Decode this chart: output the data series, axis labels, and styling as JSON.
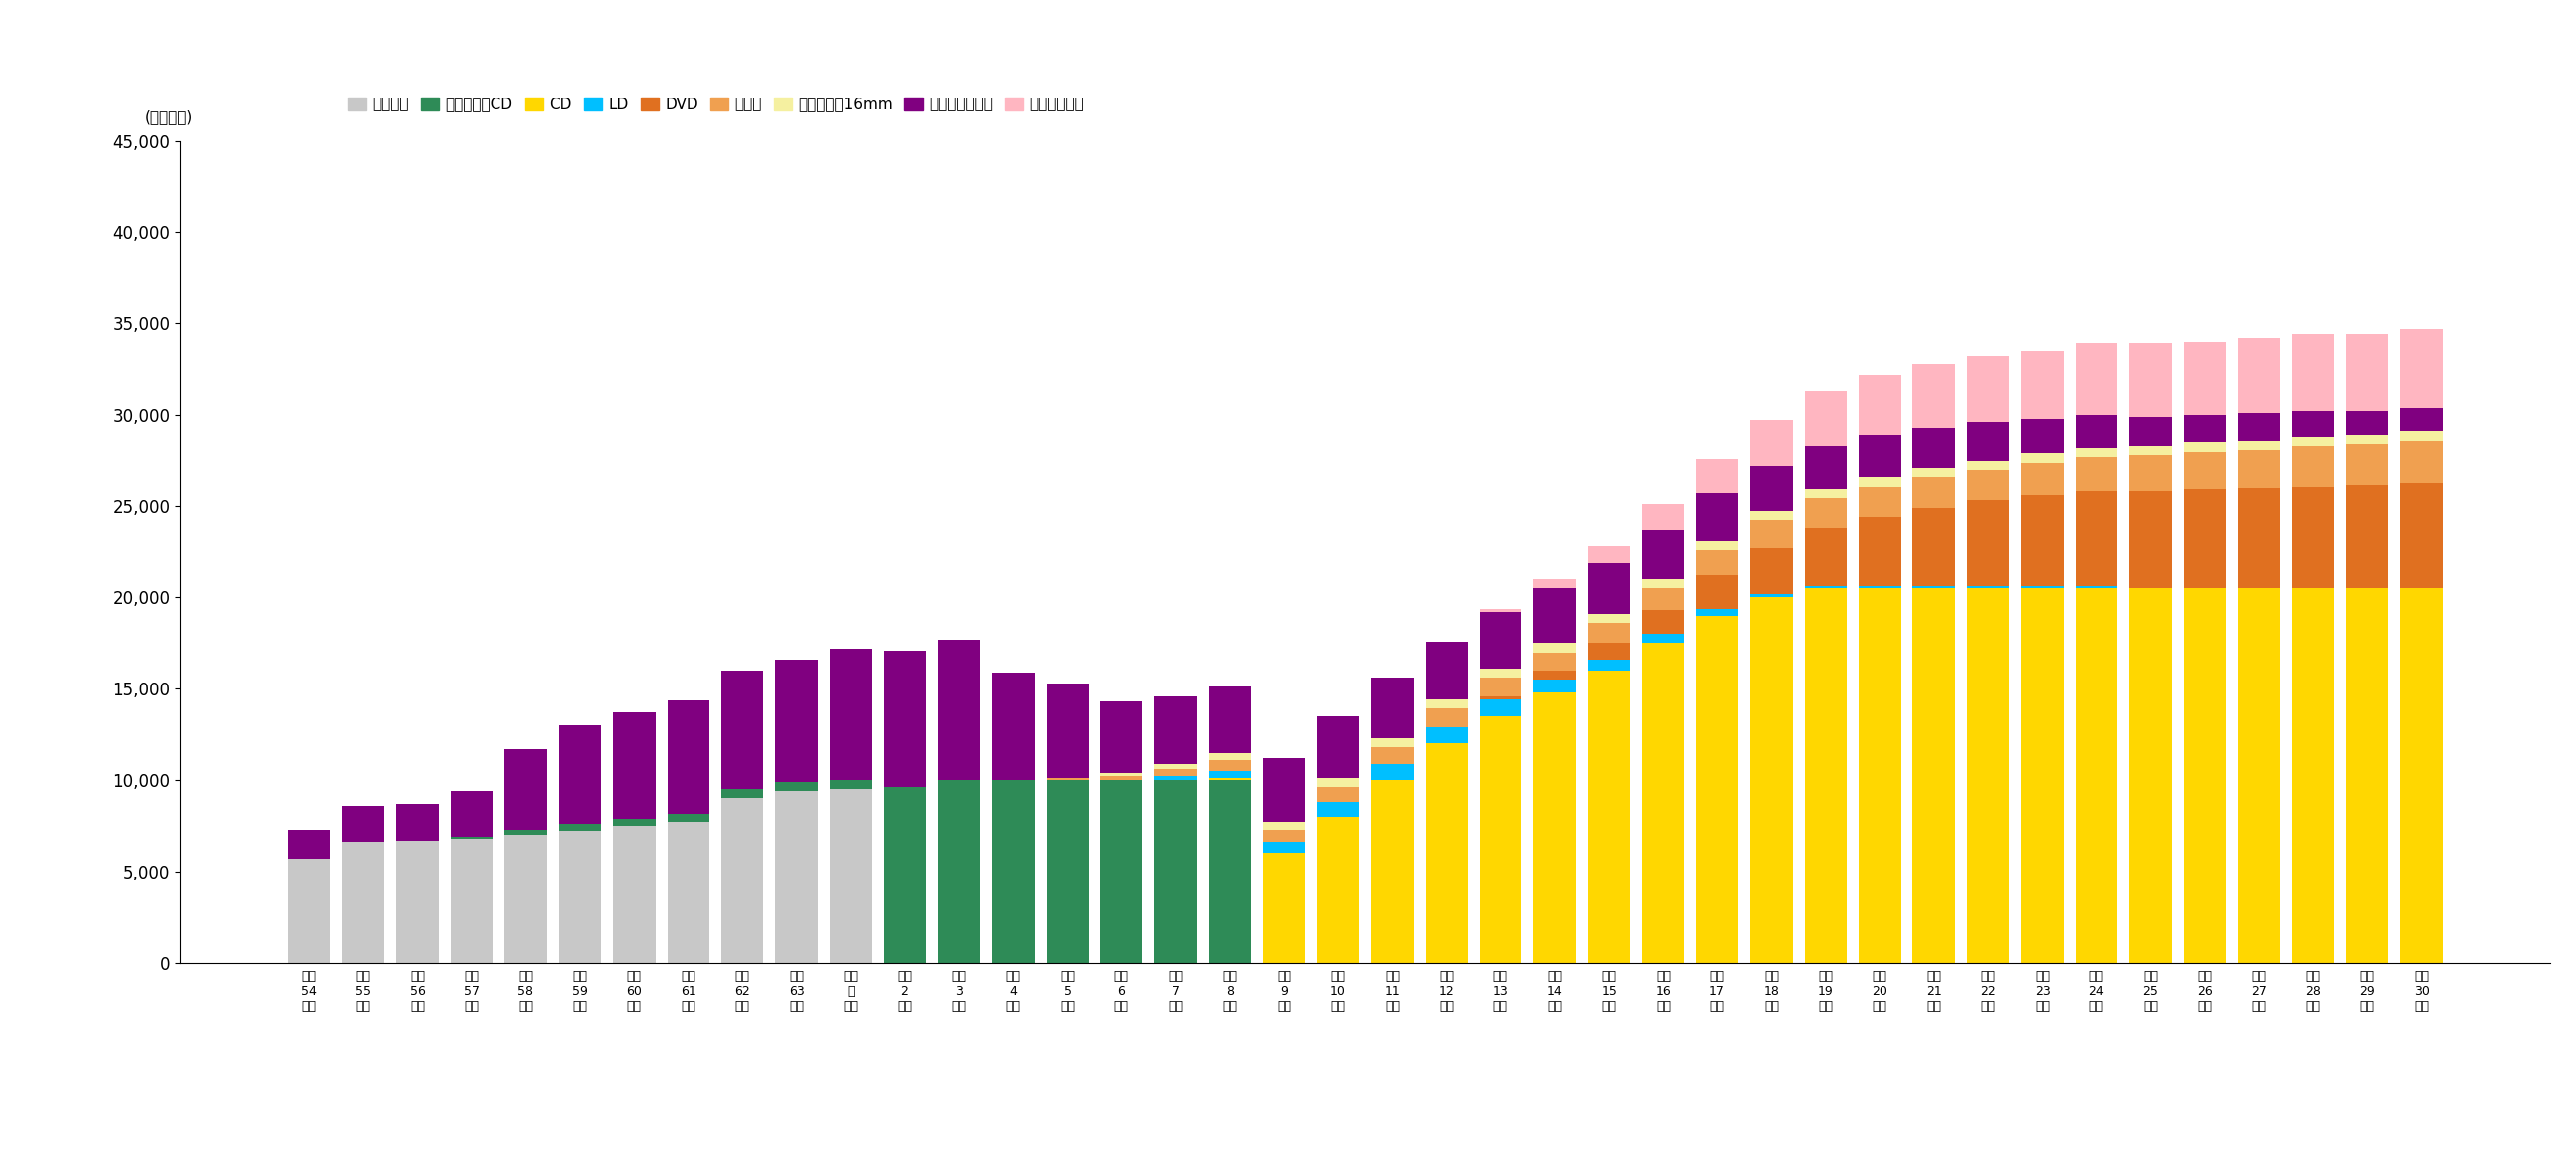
{
  "ylabel": "(単位：組)",
  "ylim": [
    0,
    45000
  ],
  "yticks": [
    0,
    5000,
    10000,
    15000,
    20000,
    25000,
    30000,
    35000,
    40000,
    45000
  ],
  "categories": [
    "昭和\n54\n年度",
    "昭和\n55\n年度",
    "昭和\n56\n年度",
    "昭和\n57\n年度",
    "昭和\n58\n年度",
    "昭和\n59\n年度",
    "昭和\n60\n年度",
    "昭和\n61\n年度",
    "昭和\n62\n年度",
    "昭和\n63\n年度",
    "平成\n元\n年度",
    "平成\n2\n年度",
    "平成\n3\n年度",
    "平成\n4\n年度",
    "平成\n5\n年度",
    "平成\n6\n年度",
    "平成\n7\n年度",
    "平成\n8\n年度",
    "平成\n9\n年度",
    "平成\n10\n年度",
    "平成\n11\n年度",
    "平成\n12\n年度",
    "平成\n13\n年度",
    "平成\n14\n年度",
    "平成\n15\n年度",
    "平成\n16\n年度",
    "平成\n17\n年度",
    "平成\n18\n年度",
    "平成\n19\n年度",
    "平成\n20\n年度",
    "平成\n21\n年度",
    "平成\n22\n年度",
    "平成\n23\n年度",
    "平成\n24\n年度",
    "平成\n25\n年度",
    "平成\n26\n年度",
    "平成\n27\n年度",
    "平成\n28\n年度",
    "平成\n29\n年度",
    "平成\n30\n年度"
  ],
  "series": {
    "レコード": [
      5700,
      6600,
      6700,
      6800,
      7000,
      7200,
      7500,
      7700,
      9000,
      9400,
      9500,
      0,
      0,
      0,
      0,
      0,
      0,
      0,
      0,
      0,
      0,
      0,
      0,
      0,
      0,
      0,
      0,
      0,
      0,
      0,
      0,
      0,
      0,
      0,
      0,
      0,
      0,
      0,
      0,
      0
    ],
    "レコード・CD": [
      0,
      0,
      0,
      100,
      300,
      400,
      400,
      450,
      500,
      500,
      500,
      9600,
      10000,
      10000,
      10000,
      10000,
      10000,
      10000,
      0,
      0,
      0,
      0,
      0,
      0,
      0,
      0,
      0,
      0,
      0,
      0,
      0,
      0,
      0,
      0,
      0,
      0,
      0,
      0,
      0,
      0
    ],
    "CD": [
      0,
      0,
      0,
      0,
      0,
      0,
      0,
      0,
      0,
      0,
      0,
      0,
      0,
      0,
      0,
      0,
      0,
      100,
      6000,
      8000,
      10000,
      12000,
      13500,
      14800,
      16000,
      17500,
      19000,
      20000,
      20500,
      20500,
      20500,
      20500,
      20500,
      20500,
      20500,
      20500,
      20500,
      20500,
      20500,
      20500
    ],
    "LD": [
      0,
      0,
      0,
      0,
      0,
      0,
      0,
      0,
      0,
      0,
      0,
      0,
      0,
      0,
      0,
      0,
      200,
      400,
      600,
      800,
      900,
      900,
      900,
      700,
      600,
      500,
      400,
      200,
      100,
      100,
      100,
      100,
      100,
      100,
      0,
      0,
      0,
      0,
      0,
      0
    ],
    "DVD": [
      0,
      0,
      0,
      0,
      0,
      0,
      0,
      0,
      0,
      0,
      0,
      0,
      0,
      0,
      0,
      0,
      0,
      0,
      0,
      0,
      0,
      0,
      200,
      500,
      900,
      1300,
      1800,
      2500,
      3200,
      3800,
      4300,
      4700,
      5000,
      5200,
      5300,
      5400,
      5500,
      5600,
      5700,
      5800
    ],
    "ビデオ": [
      0,
      0,
      0,
      0,
      0,
      0,
      0,
      0,
      0,
      0,
      0,
      0,
      0,
      0,
      100,
      200,
      400,
      600,
      700,
      800,
      900,
      1000,
      1000,
      1000,
      1100,
      1200,
      1400,
      1500,
      1600,
      1700,
      1700,
      1700,
      1800,
      1900,
      2000,
      2100,
      2100,
      2200,
      2200,
      2300
    ],
    "スライド・16mm": [
      0,
      0,
      0,
      0,
      0,
      0,
      0,
      0,
      0,
      0,
      0,
      0,
      0,
      0,
      0,
      200,
      300,
      400,
      400,
      500,
      500,
      500,
      500,
      500,
      500,
      500,
      500,
      500,
      500,
      500,
      500,
      500,
      500,
      500,
      500,
      500,
      500,
      500,
      500,
      500
    ],
    "カセットテープ": [
      1600,
      2000,
      2000,
      2500,
      4400,
      5400,
      5800,
      6200,
      6500,
      6700,
      7200,
      7500,
      7700,
      5900,
      5200,
      3900,
      3700,
      3600,
      3500,
      3400,
      3300,
      3200,
      3100,
      3000,
      2800,
      2700,
      2600,
      2500,
      2400,
      2300,
      2200,
      2100,
      1900,
      1800,
      1600,
      1500,
      1500,
      1400,
      1300,
      1300
    ],
    "その他視聴覚": [
      0,
      0,
      0,
      0,
      0,
      0,
      0,
      0,
      0,
      0,
      0,
      0,
      0,
      0,
      0,
      0,
      0,
      0,
      0,
      0,
      0,
      0,
      200,
      500,
      900,
      1400,
      1900,
      2500,
      3000,
      3300,
      3500,
      3600,
      3700,
      3900,
      4000,
      4000,
      4100,
      4200,
      4200,
      4300
    ]
  },
  "colors": {
    "レコード": "#c8c8c8",
    "レコード・CD": "#2e8b57",
    "CD": "#ffd700",
    "LD": "#00bfff",
    "DVD": "#e07020",
    "ビデオ": "#f0a050",
    "スライド・16mm": "#f5f0a0",
    "カセットテープ": "#800080",
    "その他視聴覚": "#ffb6c1"
  },
  "legend_order": [
    "レコード",
    "レコード・CD",
    "CD",
    "LD",
    "DVD",
    "ビデオ",
    "スライド・16mm",
    "カセットテープ",
    "その他視聴覚"
  ],
  "background_color": "#ffffff",
  "fontsize_yticks": 12,
  "fontsize_xticks": 9,
  "fontsize_legend": 11,
  "fontsize_ylabel": 11
}
